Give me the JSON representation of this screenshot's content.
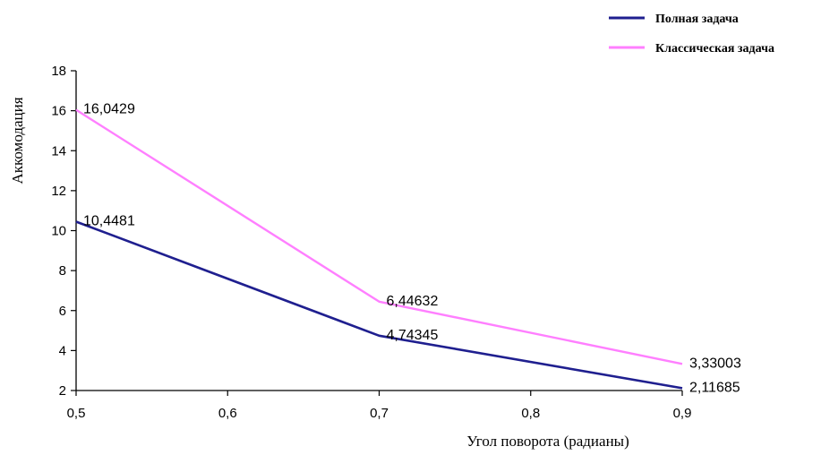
{
  "chart_data": {
    "type": "line",
    "x": [
      0.5,
      0.7,
      0.9
    ],
    "x_tick_labels": [
      "0,5",
      "0,6",
      "0,7",
      "0,8",
      "0,9"
    ],
    "y_tick_labels": [
      "2",
      "4",
      "6",
      "8",
      "10",
      "12",
      "14",
      "16",
      "18"
    ],
    "xlim": [
      0.5,
      0.9
    ],
    "ylim": [
      2,
      18
    ],
    "xlabel": "Угол поворота (радианы)",
    "ylabel": "Аккомодация",
    "grid": false,
    "legend_position": "top-right",
    "series": [
      {
        "name": "Полная задача",
        "color": "#1f1f8f",
        "values": [
          10.4481,
          4.74345,
          2.11685
        ],
        "labels": [
          "10,4481",
          "4,74345",
          "2,11685"
        ]
      },
      {
        "name": "Классическая задача",
        "color": "#ff7fff",
        "values": [
          16.0429,
          6.44632,
          3.33003
        ],
        "labels": [
          "16,0429",
          "6,44632",
          "3,33003"
        ]
      }
    ]
  }
}
